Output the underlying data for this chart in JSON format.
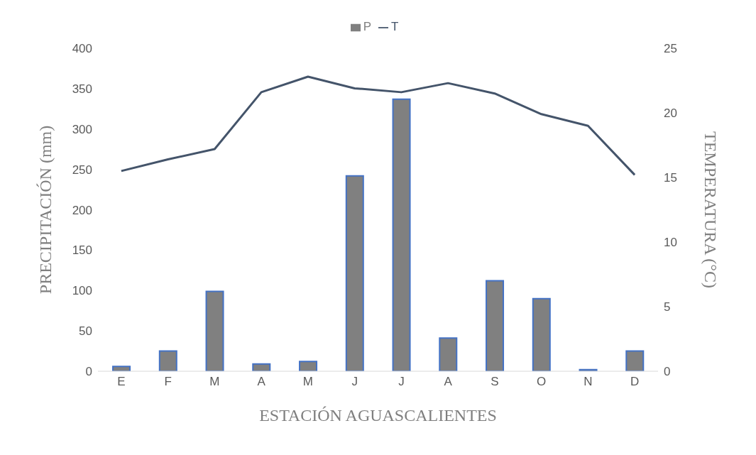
{
  "chart_data": {
    "type": "bar",
    "xlabel": "ESTACIÓN AGUASCALIENTES",
    "ylabel": "PRECIPITACIÓN (mm)",
    "y2label": "TEMPERATURA (°C)",
    "categories": [
      "E",
      "F",
      "M",
      "A",
      "M",
      "J",
      "J",
      "A",
      "S",
      "O",
      "N",
      "D"
    ],
    "series": [
      {
        "name": "P",
        "color": "#808080",
        "values": [
          6,
          25,
          99,
          9,
          12,
          242,
          337,
          41,
          112,
          90,
          2,
          25
        ]
      },
      {
        "name": "T",
        "type": "line",
        "axis": "y2",
        "color": "#44546a",
        "values": [
          15.5,
          16.4,
          17.2,
          21.6,
          22.8,
          21.9,
          21.6,
          22.3,
          21.5,
          19.9,
          19.0,
          15.2
        ]
      }
    ],
    "ylim": [
      0,
      400
    ],
    "yticks": [
      0,
      50,
      100,
      150,
      200,
      250,
      300,
      350,
      400
    ],
    "y2lim": [
      0,
      25
    ],
    "y2ticks": [
      0,
      5,
      10,
      15,
      20,
      25
    ],
    "grid": false,
    "legend": "top",
    "marker": "none",
    "line_style": "solid"
  }
}
